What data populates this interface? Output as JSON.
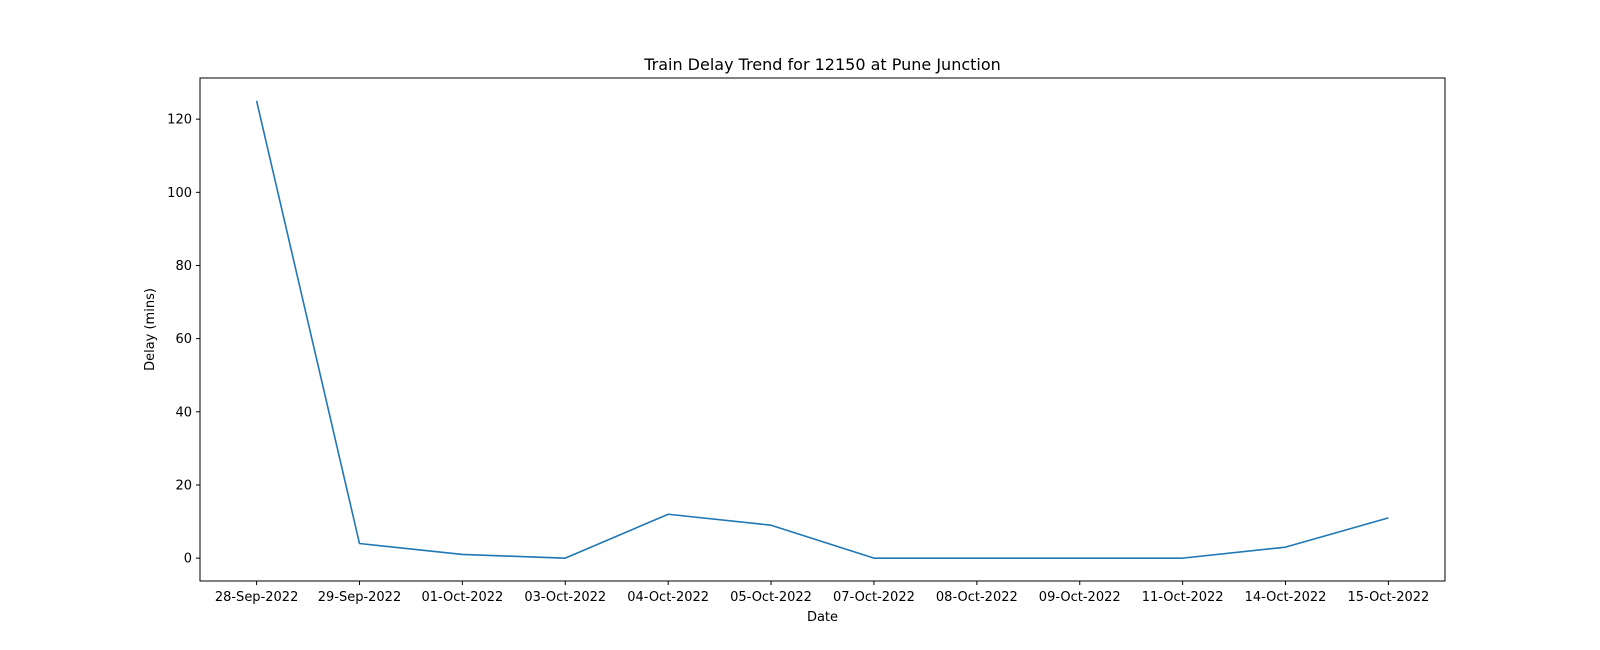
{
  "chart_data": {
    "type": "line",
    "title": "Train Delay Trend for 12150 at Pune Junction",
    "xlabel": "Date",
    "ylabel": "Delay (mins)",
    "categories": [
      "28-Sep-2022",
      "29-Sep-2022",
      "01-Oct-2022",
      "03-Oct-2022",
      "04-Oct-2022",
      "05-Oct-2022",
      "07-Oct-2022",
      "08-Oct-2022",
      "09-Oct-2022",
      "11-Oct-2022",
      "14-Oct-2022",
      "15-Oct-2022"
    ],
    "series": [
      {
        "values": [
          125,
          4,
          1,
          0,
          12,
          9,
          0,
          0,
          0,
          0,
          3,
          11
        ],
        "color": "#1f77b4"
      }
    ],
    "ylim": [
      -6.25,
      131.25
    ],
    "yticks": [
      0,
      20,
      40,
      60,
      80,
      100,
      120
    ],
    "grid": false,
    "legend": false
  }
}
